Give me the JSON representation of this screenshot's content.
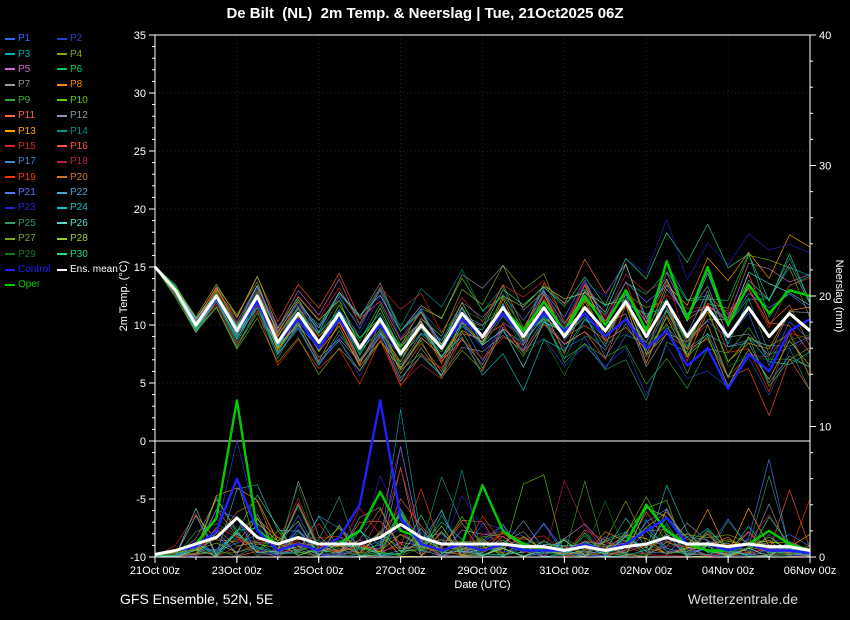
{
  "header": {
    "title": "De Bilt  (NL)  2m Temp. & Neerslag | Tue, 21Oct2025 06Z"
  },
  "footer": {
    "left": "GFS Ensemble, 52N, 5E",
    "right": "Wetterzentrale.de"
  },
  "legend": {
    "members": [
      {
        "label": "P1",
        "color": "#3366ff"
      },
      {
        "label": "P2",
        "color": "#2244cc"
      },
      {
        "label": "P3",
        "color": "#00b0b0"
      },
      {
        "label": "P4",
        "color": "#88aa00"
      },
      {
        "label": "P5",
        "color": "#cc66cc"
      },
      {
        "label": "P6",
        "color": "#00cc66"
      },
      {
        "label": "P7",
        "color": "#999999"
      },
      {
        "label": "P8",
        "color": "#ff8800"
      },
      {
        "label": "P9",
        "color": "#33aa33"
      },
      {
        "label": "P10",
        "color": "#66cc00"
      },
      {
        "label": "P11",
        "color": "#ff6644"
      },
      {
        "label": "P12",
        "color": "#8899aa"
      },
      {
        "label": "P13",
        "color": "#ffaa00"
      },
      {
        "label": "P14",
        "color": "#009988"
      },
      {
        "label": "P15",
        "color": "#dd2222"
      },
      {
        "label": "P16",
        "color": "#ff5533"
      },
      {
        "label": "P17",
        "color": "#4488cc"
      },
      {
        "label": "P18",
        "color": "#bb2244"
      },
      {
        "label": "P19",
        "color": "#ff3300"
      },
      {
        "label": "P20",
        "color": "#cc7722"
      },
      {
        "label": "P21",
        "color": "#5577ff"
      },
      {
        "label": "P22",
        "color": "#44aacc"
      },
      {
        "label": "P23",
        "color": "#2222cc"
      },
      {
        "label": "P24",
        "color": "#00ccbb"
      },
      {
        "label": "P25",
        "color": "#339966"
      },
      {
        "label": "P26",
        "color": "#55ddcc"
      },
      {
        "label": "P27",
        "color": "#77aa22"
      },
      {
        "label": "P28",
        "color": "#99cc33"
      },
      {
        "label": "P29",
        "color": "#117722"
      },
      {
        "label": "P30",
        "color": "#22dd88"
      }
    ],
    "control": {
      "label": "Control",
      "color": "#2020ff"
    },
    "mean": {
      "label": "Ens. mean",
      "color": "#ffffff"
    },
    "oper": {
      "label": "Oper",
      "color": "#00cc00"
    }
  },
  "chart_data": {
    "type": "line",
    "title": "De Bilt  (NL)  2m Temp. & Neerslag | Tue, 21Oct2025 06Z",
    "xlabel": "Date (UTC)",
    "ylabel_left": "2m Temp. (°C)",
    "ylabel_right": "Neerslag (mm)",
    "x_tick_labels": [
      "21Oct 00z",
      "23Oct 00z",
      "25Oct 00z",
      "27Oct 00z",
      "29Oct 00z",
      "31Oct 00z",
      "02Nov 00z",
      "04Nov 00z",
      "06Nov 00z"
    ],
    "x_range_days": 16,
    "time_step_hours": 12,
    "y_left_ticks": [
      -10,
      -5,
      0,
      5,
      10,
      15,
      20,
      25,
      30,
      35
    ],
    "y_left_range": [
      -10,
      35
    ],
    "y_right_ticks": [
      0,
      10,
      20,
      30,
      40
    ],
    "y_right_range": [
      0,
      40
    ],
    "zero_line_temp": 0,
    "grid": "subtle dotted",
    "legend_position": "top-left outside plot",
    "series": {
      "ens_mean_temp": [
        15,
        13,
        10,
        12.5,
        9.5,
        12.5,
        8.5,
        11,
        8.5,
        11,
        8,
        10.5,
        7.5,
        10,
        8,
        11,
        9,
        11.5,
        9,
        11.5,
        9,
        11.5,
        9.5,
        12,
        9,
        12,
        9,
        11.5,
        9,
        11.5,
        9,
        11,
        9.5
      ],
      "control_temp": [
        15,
        13,
        10,
        12.3,
        9.5,
        12,
        8.5,
        10.5,
        8,
        10.5,
        8,
        10,
        7.5,
        10,
        8,
        10.5,
        9,
        11,
        9,
        11,
        9.5,
        11,
        9,
        10.5,
        8,
        9.5,
        6.5,
        8,
        4.5,
        7.5,
        6,
        9.5,
        10.5
      ],
      "oper_temp": [
        15,
        13.2,
        10,
        12.5,
        9.5,
        12.5,
        8.5,
        11,
        8.5,
        11,
        8,
        10.5,
        7.5,
        10,
        8,
        11,
        9,
        11.5,
        9.5,
        12,
        9.5,
        12.5,
        10,
        13,
        9.5,
        15.5,
        10.5,
        15,
        10,
        13.5,
        11,
        13,
        12.5
      ],
      "ens_mean_precip": [
        0.2,
        0.5,
        1,
        1.5,
        3,
        1.5,
        1,
        1.5,
        1,
        1,
        1,
        1.5,
        2.5,
        1.5,
        1,
        1,
        1,
        1,
        0.8,
        0.8,
        0.5,
        0.8,
        0.5,
        0.8,
        1,
        1.5,
        1,
        1,
        0.8,
        1,
        0.8,
        0.8,
        0.5
      ],
      "control_precip": [
        0.2,
        0.5,
        0.8,
        2,
        6,
        2,
        0.5,
        1,
        0.5,
        1.5,
        4,
        12,
        3,
        1,
        0.5,
        1,
        0.5,
        1,
        0.5,
        0.5,
        0.5,
        1,
        0.5,
        1,
        2,
        3,
        1,
        1,
        0.5,
        1,
        0.5,
        0.5,
        0.3
      ],
      "oper_precip": [
        0.2,
        0.5,
        1,
        3,
        12,
        2,
        1,
        1.5,
        1,
        1,
        2,
        5,
        2,
        1.5,
        1,
        1,
        5.5,
        2,
        1,
        0.5,
        0.5,
        1,
        0.5,
        1,
        4,
        2,
        1,
        0.5,
        0.5,
        1,
        2,
        1,
        0.5
      ]
    },
    "ensemble": {
      "count": 30,
      "seed": 42,
      "note": "30 perturbed members drawn as thin colored lines around ensemble mean"
    }
  }
}
